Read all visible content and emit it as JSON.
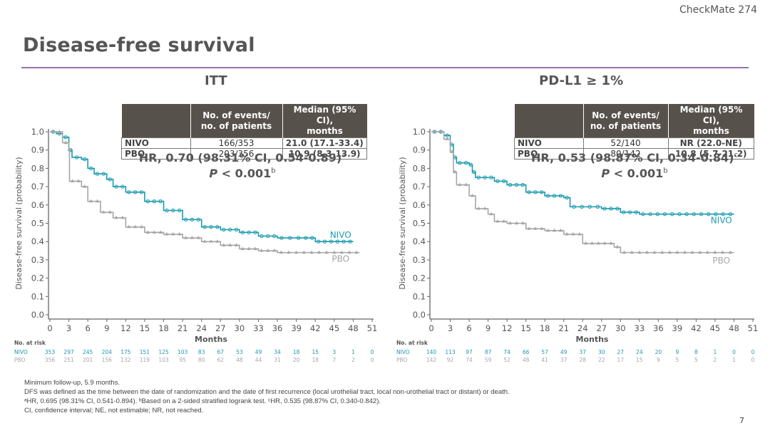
{
  "header": {
    "brand": "CheckMate 274",
    "title": "Disease-free survival",
    "accent_color": "#9b6fa8"
  },
  "colors": {
    "nivo": "#1a9bb0",
    "pbo": "#a6a6a6",
    "axis": "#666666"
  },
  "panels": [
    {
      "title": "ITT",
      "table": {
        "headers": [
          "",
          "No. of events/\nno. of patients",
          "Median (95% CI),\nmonths"
        ],
        "rows": [
          {
            "arm": "NIVO",
            "events": "166/353",
            "median": "21.0 (17.1-33.4)"
          },
          {
            "arm": "PBO",
            "events": "203/356",
            "median": "10.9 (8.3-13.9)"
          }
        ]
      },
      "hr_text": "HR, 0.70 (98.31% CI, 0.54-0.89)",
      "hr_sup": "a",
      "p_label": "P",
      "p_text": " < 0.001",
      "p_sup": "b"
    },
    {
      "title": "PD-L1 ≥ 1%",
      "table": {
        "headers": [
          "",
          "No. of events/\nno. of patients",
          "Median (95% CI),\nmonths"
        ],
        "rows": [
          {
            "arm": "NIVO",
            "events": "52/140",
            "median": "NR (22.0-NE)"
          },
          {
            "arm": "PBO",
            "events": "80/142",
            "median": "10.8 (5.7-21.2)"
          }
        ]
      },
      "hr_text": "HR, 0.53 (98.87% CI, 0.34-0.84)",
      "hr_sup": "c",
      "p_label": "P",
      "p_text": " < 0.001",
      "p_sup": "b"
    }
  ],
  "chart_data": [
    {
      "type": "line",
      "subtype": "kaplan-meier",
      "title": "ITT",
      "xlabel": "Months",
      "ylabel": "Disease-free survival (probability)",
      "xlim": [
        0,
        51
      ],
      "ylim": [
        0,
        1
      ],
      "xticks": [
        0,
        3,
        6,
        9,
        12,
        15,
        18,
        21,
        24,
        27,
        30,
        33,
        36,
        39,
        42,
        45,
        48,
        51
      ],
      "yticks": [
        "0.0",
        "0.1",
        "0.2",
        "0.3",
        "0.4",
        "0.5",
        "0.6",
        "0.7",
        "0.8",
        "0.9",
        "1.0"
      ],
      "grid": false,
      "series": [
        {
          "name": "NIVO",
          "label_y": 0.42,
          "label_x": 46,
          "points": [
            [
              0,
              1.0
            ],
            [
              1,
              0.99
            ],
            [
              2,
              0.97
            ],
            [
              3,
              0.9
            ],
            [
              3.5,
              0.86
            ],
            [
              5,
              0.85
            ],
            [
              6,
              0.8
            ],
            [
              7,
              0.77
            ],
            [
              9,
              0.74
            ],
            [
              10,
              0.7
            ],
            [
              12,
              0.67
            ],
            [
              15,
              0.62
            ],
            [
              18,
              0.57
            ],
            [
              21,
              0.52
            ],
            [
              24,
              0.48
            ],
            [
              27,
              0.465
            ],
            [
              30,
              0.45
            ],
            [
              33,
              0.43
            ],
            [
              36,
              0.42
            ],
            [
              40,
              0.42
            ],
            [
              42,
              0.4
            ],
            [
              45,
              0.4
            ],
            [
              48,
              0.4
            ]
          ]
        },
        {
          "name": "PBO",
          "label_y": 0.29,
          "label_x": 46,
          "points": [
            [
              0,
              1.0
            ],
            [
              2,
              0.94
            ],
            [
              3,
              0.9
            ],
            [
              3.1,
              0.73
            ],
            [
              5,
              0.7
            ],
            [
              6,
              0.62
            ],
            [
              8,
              0.56
            ],
            [
              10,
              0.53
            ],
            [
              12,
              0.48
            ],
            [
              15,
              0.45
            ],
            [
              18,
              0.44
            ],
            [
              21,
              0.42
            ],
            [
              24,
              0.4
            ],
            [
              27,
              0.38
            ],
            [
              30,
              0.36
            ],
            [
              33,
              0.35
            ],
            [
              36,
              0.34
            ],
            [
              42,
              0.34
            ],
            [
              48,
              0.34
            ],
            [
              49,
              0.34
            ]
          ]
        }
      ],
      "at_risk": {
        "label": "No. at risk",
        "rows": [
          {
            "name": "NIVO",
            "values": [
              353,
              297,
              245,
              204,
              175,
              151,
              125,
              103,
              83,
              67,
              53,
              49,
              34,
              18,
              15,
              3,
              1,
              0
            ]
          },
          {
            "name": "PBO",
            "values": [
              356,
              251,
              201,
              156,
              132,
              119,
              103,
              95,
              80,
              62,
              48,
              44,
              31,
              20,
              18,
              7,
              2,
              0
            ]
          }
        ]
      }
    },
    {
      "type": "line",
      "subtype": "kaplan-meier",
      "title": "PD-L1 ≥ 1%",
      "xlabel": "Months",
      "ylabel": "Disease-free survival (probability)",
      "xlim": [
        0,
        51
      ],
      "ylim": [
        0,
        1
      ],
      "xticks": [
        0,
        3,
        6,
        9,
        12,
        15,
        18,
        21,
        24,
        27,
        30,
        33,
        36,
        39,
        42,
        45,
        48,
        51
      ],
      "yticks": [
        "0.0",
        "0.1",
        "0.2",
        "0.3",
        "0.4",
        "0.5",
        "0.6",
        "0.7",
        "0.8",
        "0.9",
        "1.0"
      ],
      "grid": false,
      "series": [
        {
          "name": "NIVO",
          "label_y": 0.5,
          "label_x": 46,
          "points": [
            [
              0,
              1.0
            ],
            [
              2,
              0.98
            ],
            [
              3,
              0.93
            ],
            [
              3.5,
              0.86
            ],
            [
              4,
              0.83
            ],
            [
              6,
              0.82
            ],
            [
              6.5,
              0.78
            ],
            [
              7,
              0.75
            ],
            [
              10,
              0.73
            ],
            [
              12,
              0.71
            ],
            [
              15,
              0.67
            ],
            [
              18,
              0.65
            ],
            [
              21,
              0.64
            ],
            [
              22,
              0.59
            ],
            [
              27,
              0.58
            ],
            [
              30,
              0.56
            ],
            [
              33,
              0.55
            ],
            [
              48,
              0.55
            ]
          ]
        },
        {
          "name": "PBO",
          "label_y": 0.28,
          "label_x": 46,
          "points": [
            [
              0,
              1.0
            ],
            [
              2,
              0.96
            ],
            [
              3,
              0.89
            ],
            [
              3.5,
              0.78
            ],
            [
              4,
              0.71
            ],
            [
              6,
              0.65
            ],
            [
              7,
              0.58
            ],
            [
              9,
              0.55
            ],
            [
              10,
              0.51
            ],
            [
              12,
              0.5
            ],
            [
              15,
              0.47
            ],
            [
              18,
              0.46
            ],
            [
              21,
              0.44
            ],
            [
              24,
              0.39
            ],
            [
              27,
              0.39
            ],
            [
              29,
              0.37
            ],
            [
              30,
              0.34
            ],
            [
              48,
              0.34
            ]
          ]
        }
      ],
      "at_risk": {
        "label": "No. at risk",
        "rows": [
          {
            "name": "NIVO",
            "values": [
              140,
              113,
              97,
              87,
              74,
              66,
              57,
              49,
              37,
              30,
              27,
              24,
              20,
              9,
              8,
              1,
              0,
              0
            ]
          },
          {
            "name": "PBO",
            "values": [
              142,
              92,
              74,
              59,
              52,
              48,
              41,
              37,
              28,
              22,
              17,
              15,
              9,
              5,
              5,
              2,
              1,
              0
            ]
          }
        ]
      }
    }
  ],
  "footnotes": [
    "Minimum follow-up, 5.9 months.",
    "DFS was defined as the time between the date of randomization and the date of first recurrence (local urothelial tract, local non-urothelial tract or distant) or death.",
    "ᵃHR, 0.695 (98.31% CI, 0.541-0.894). ᵇBased on a 2-sided stratified logrank test. ᶜHR, 0.535 (98.87% CI, 0.340-0.842).",
    "CI, confidence interval; NE, not estimable; NR, not reached."
  ],
  "page_number": "7"
}
